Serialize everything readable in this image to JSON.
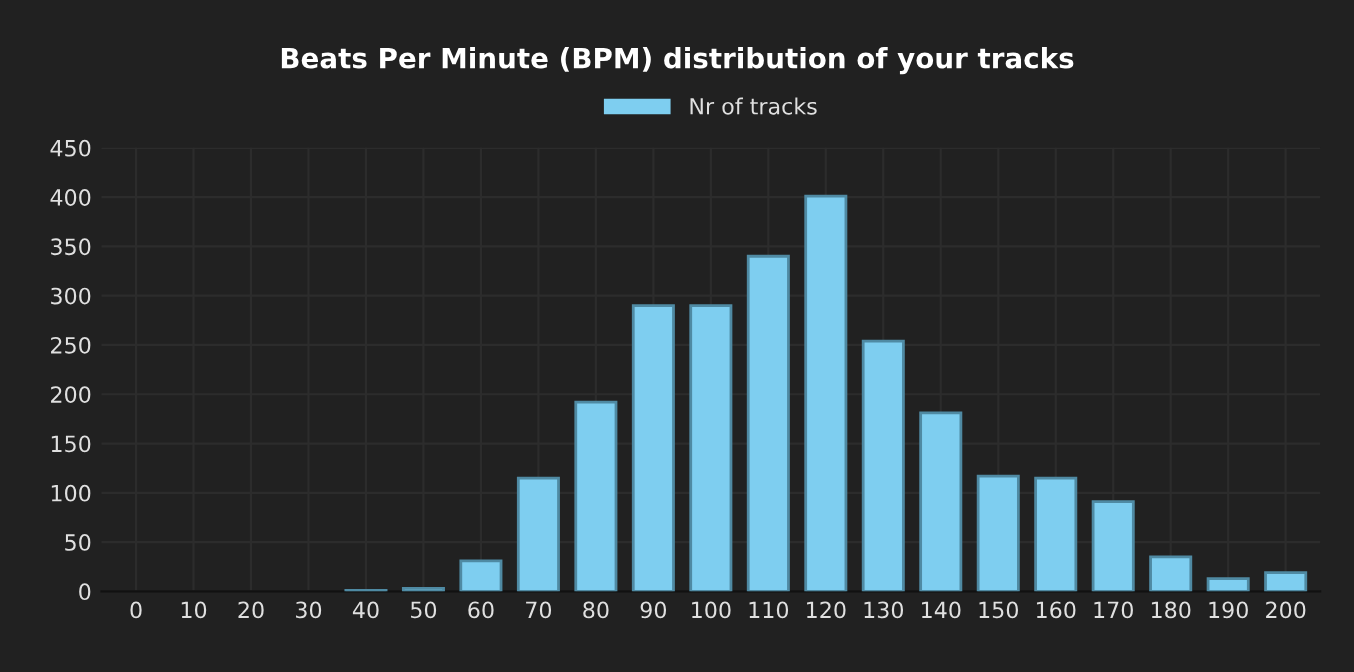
{
  "chart_data": {
    "type": "bar",
    "title": "Beats Per Minute (BPM) distribution of your tracks",
    "categories": [
      "0",
      "10",
      "20",
      "30",
      "40",
      "50",
      "60",
      "70",
      "80",
      "90",
      "100",
      "110",
      "120",
      "130",
      "140",
      "150",
      "160",
      "170",
      "180",
      "190",
      "200"
    ],
    "series": [
      {
        "name": "Nr of tracks",
        "color": "#7ecef0",
        "values": [
          0,
          0,
          0,
          0,
          1,
          3,
          31,
          115,
          192,
          290,
          290,
          340,
          401,
          254,
          181,
          117,
          115,
          91,
          35,
          13,
          19
        ]
      }
    ],
    "ylim": [
      0,
      450
    ],
    "yticks": [
      0,
      50,
      100,
      150,
      200,
      250,
      300,
      350,
      400,
      450
    ],
    "grid": true,
    "legend": "top"
  }
}
